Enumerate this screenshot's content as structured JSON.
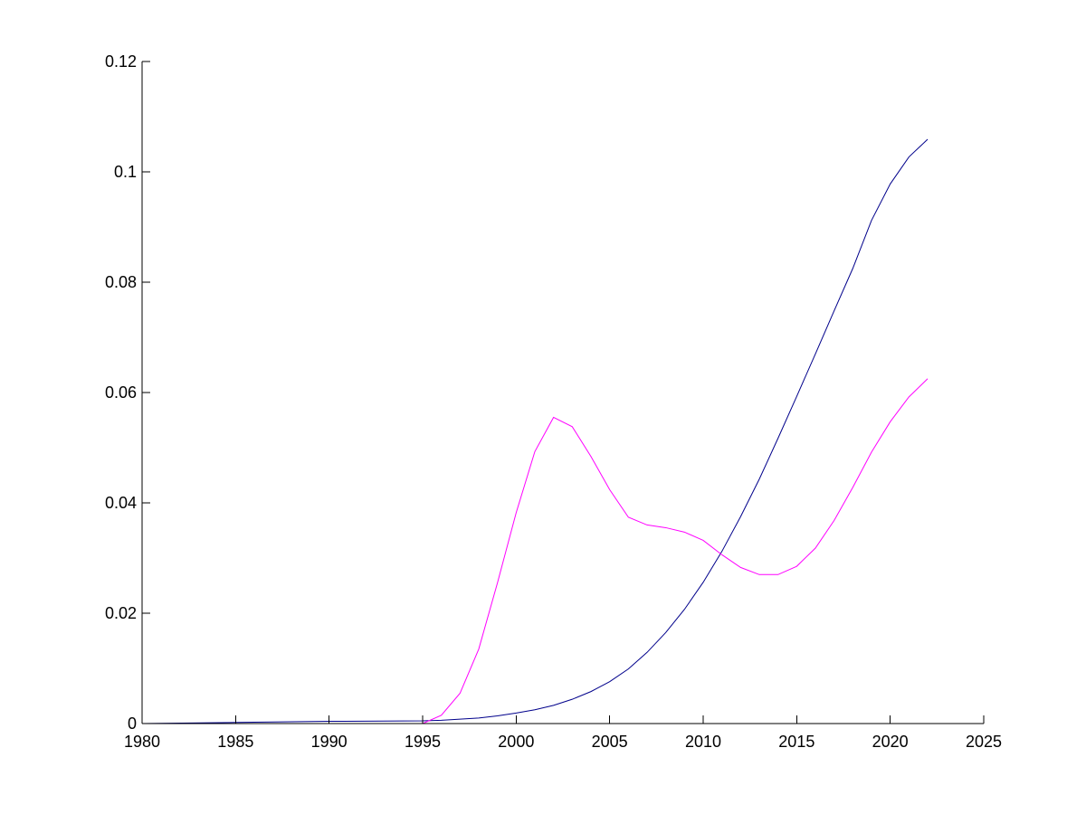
{
  "chart_data": {
    "type": "line",
    "title": "",
    "xlabel": "",
    "ylabel": "",
    "xlim": [
      1980,
      2025
    ],
    "ylim": [
      0,
      0.12
    ],
    "grid": false,
    "legend": "none",
    "x_ticks": [
      1980,
      1985,
      1990,
      1995,
      2000,
      2005,
      2010,
      2015,
      2020,
      2025
    ],
    "y_ticks": [
      0,
      0.02,
      0.04,
      0.06,
      0.08,
      0.1,
      0.12
    ],
    "x_tick_labels": [
      "1980",
      "1985",
      "1990",
      "1995",
      "2000",
      "2005",
      "2010",
      "2015",
      "2020",
      "2025"
    ],
    "y_tick_labels": [
      "0",
      "0.02",
      "0.04",
      "0.06",
      "0.08",
      "0.1",
      "0.12"
    ],
    "series": [
      {
        "color": "#00008b",
        "x": [
          1980,
          1985,
          1990,
          1995,
          1996,
          1997,
          1998,
          1999,
          2000,
          2001,
          2002,
          2003,
          2004,
          2005,
          2006,
          2007,
          2008,
          2009,
          2010,
          2011,
          2012,
          2013,
          2014,
          2015,
          2016,
          2017,
          2018,
          2019,
          2020,
          2021,
          2022
        ],
        "y": [
          0,
          0.0002,
          0.0004,
          0.0005,
          0.0006,
          0.0008,
          0.001,
          0.0014,
          0.0019,
          0.0025,
          0.0033,
          0.0044,
          0.0058,
          0.0076,
          0.0099,
          0.0129,
          0.0165,
          0.0207,
          0.0256,
          0.0312,
          0.0375,
          0.0443,
          0.0517,
          0.0593,
          0.067,
          0.0748,
          0.0825,
          0.0912,
          0.0978,
          0.1027,
          0.1059
        ]
      },
      {
        "color": "#ff00ff",
        "x": [
          1980,
          1985,
          1990,
          1995,
          1996,
          1997,
          1998,
          1999,
          2000,
          2001,
          2002,
          2003,
          2004,
          2005,
          2006,
          2007,
          2008,
          2009,
          2010,
          2011,
          2012,
          2013,
          2014,
          2015,
          2016,
          2017,
          2018,
          2019,
          2020,
          2021,
          2022
        ],
        "y": [
          0,
          0,
          0,
          0,
          0.0015,
          0.0055,
          0.0135,
          0.0255,
          0.0382,
          0.0493,
          0.0555,
          0.0538,
          0.0484,
          0.0424,
          0.0374,
          0.036,
          0.0355,
          0.0347,
          0.0332,
          0.0306,
          0.0283,
          0.027,
          0.027,
          0.0285,
          0.0318,
          0.0368,
          0.0428,
          0.0492,
          0.0547,
          0.0592,
          0.0625
        ]
      }
    ]
  }
}
